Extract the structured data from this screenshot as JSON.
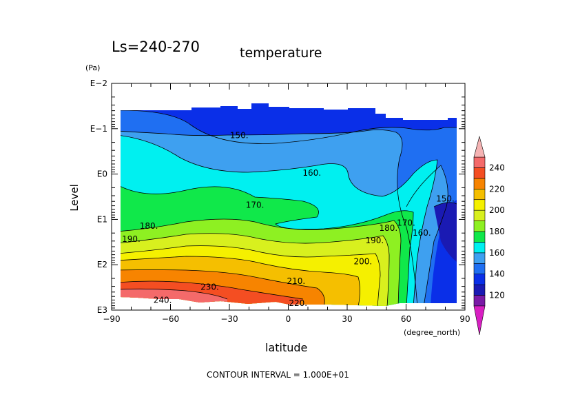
{
  "chart_data": {
    "type": "contour",
    "title": "temperature",
    "subtitle": "Ls=240-270",
    "xlabel": "latitude",
    "x_unit": "(degree_north)",
    "ylabel": "Level",
    "y_unit": "(Pa)",
    "x_range": [
      -90,
      90
    ],
    "x_ticks": [
      -90,
      -60,
      -30,
      0,
      30,
      60,
      90
    ],
    "x_tick_labels": [
      "−90",
      "−60",
      "−30",
      "0",
      "30",
      "60",
      "90"
    ],
    "y_scale": "log",
    "y_range": [
      0.01,
      1000
    ],
    "y_ticks": [
      0.01,
      0.1,
      1,
      10,
      100,
      1000
    ],
    "y_tick_labels": [
      "E−2",
      "E−1",
      "E0",
      "E1",
      "E2",
      "E3"
    ],
    "contour_interval": 10,
    "footer": "CONTOUR INTERVAL = 1.000E+01",
    "contour_labels": [
      {
        "text": "150.",
        "lat": -25,
        "p": 0.14
      },
      {
        "text": "160.",
        "lat": 12,
        "p": 0.95
      },
      {
        "text": "170.",
        "lat": -17,
        "p": 4.8
      },
      {
        "text": "180.",
        "lat": -71,
        "p": 14
      },
      {
        "text": "190.",
        "lat": -80,
        "p": 27
      },
      {
        "text": "180.",
        "lat": 51,
        "p": 15.5
      },
      {
        "text": "190.",
        "lat": 44,
        "p": 29
      },
      {
        "text": "200.",
        "lat": 38,
        "p": 85
      },
      {
        "text": "210.",
        "lat": 4,
        "p": 230
      },
      {
        "text": "220.",
        "lat": 5,
        "p": 700
      },
      {
        "text": "230.",
        "lat": -40,
        "p": 310
      },
      {
        "text": "240.",
        "lat": -64,
        "p": 600
      },
      {
        "text": "170.",
        "lat": 60,
        "p": 12
      },
      {
        "text": "160.",
        "lat": 68,
        "p": 20
      },
      {
        "text": "150.",
        "lat": 80,
        "p": 3.5
      }
    ],
    "colorbar": {
      "levels": [
        110,
        120,
        130,
        140,
        150,
        160,
        170,
        180,
        190,
        200,
        210,
        220,
        230,
        240,
        250
      ],
      "tick_labels": [
        "120",
        "140",
        "160",
        "180",
        "200",
        "220",
        "240"
      ],
      "tick_values": [
        120,
        140,
        160,
        180,
        200,
        220,
        240
      ],
      "colors": [
        "#7a1aa6",
        "#1a1ab3",
        "#0a2fe8",
        "#1f6ff2",
        "#3ea0f0",
        "#00f0f0",
        "#10e84a",
        "#8ef022",
        "#d8f01e",
        "#f5f000",
        "#f5bf00",
        "#f78400",
        "#f44e22",
        "#f46a6a"
      ],
      "under_color": "#d81fc2",
      "over_color": "#f5b3b3"
    }
  }
}
